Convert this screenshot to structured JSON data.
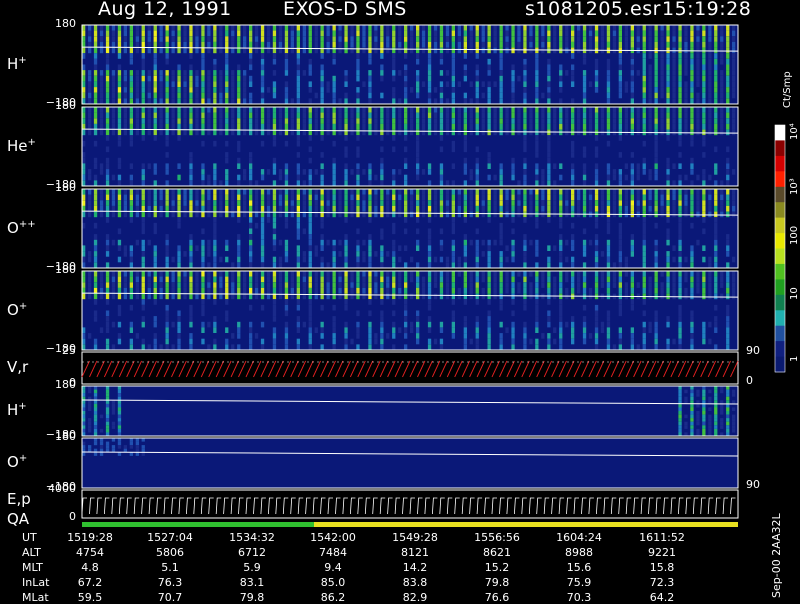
{
  "header": {
    "date": "Aug 12, 1991",
    "instrument": "EXOS-D SMS",
    "file": "s1081205.esr",
    "time": "15:19:28"
  },
  "panels": [
    {
      "id": "h1",
      "label_base": "H",
      "label_sup": "+",
      "top_tick": "180",
      "bottom_tick": "−180"
    },
    {
      "id": "he",
      "label_base": "He",
      "label_sup": "+",
      "top_tick": "180",
      "bottom_tick": "−180"
    },
    {
      "id": "oo",
      "label_base": "O",
      "label_sup": "++",
      "top_tick": "180",
      "bottom_tick": "−180"
    },
    {
      "id": "o1",
      "label_base": "O",
      "label_sup": "+",
      "top_tick": "180",
      "bottom_tick": "−180"
    },
    {
      "id": "vr",
      "label_base": "V,r",
      "label_sup": "",
      "top_tick": "25",
      "bottom_tick": "0",
      "right_top": "90",
      "right_bottom": "0"
    },
    {
      "id": "h2",
      "label_base": "H",
      "label_sup": "+",
      "top_tick": "180",
      "bottom_tick": "−180"
    },
    {
      "id": "o2",
      "label_base": "O",
      "label_sup": "+",
      "top_tick": "180",
      "bottom_tick": "−180",
      "right_bottom": "90"
    },
    {
      "id": "ep",
      "label_base": "E,p",
      "label_sup": "",
      "label2": "QA",
      "top_tick": "4000",
      "bottom_tick": "0"
    }
  ],
  "colorbar": {
    "unit": "Ct/Smp",
    "ticks": [
      "10⁴",
      "10³",
      "100",
      "10",
      "1"
    ],
    "colors": [
      "#ffffff",
      "#8b0000",
      "#d40000",
      "#ff2000",
      "#5a4a2a",
      "#8a8a20",
      "#c8c820",
      "#e8e800",
      "#b8e020",
      "#50c020",
      "#20a020",
      "#108050",
      "#20b0b0",
      "#2050a0",
      "#102080",
      "#0a1a70"
    ]
  },
  "ephemeris": {
    "rows": [
      {
        "label": "UT",
        "values": [
          "1519:28",
          "1527:04",
          "1534:32",
          "1542:00",
          "1549:28",
          "1556:56",
          "1604:24",
          "1611:52"
        ]
      },
      {
        "label": "ALT",
        "values": [
          "4754",
          "5806",
          "6712",
          "7484",
          "8121",
          "8621",
          "8988",
          "9221"
        ]
      },
      {
        "label": "MLT",
        "values": [
          "4.8",
          "5.1",
          "5.9",
          "9.4",
          "14.2",
          "15.2",
          "15.6",
          "15.8"
        ]
      },
      {
        "label": "InLat",
        "values": [
          "67.2",
          "76.3",
          "83.1",
          "85.0",
          "83.8",
          "79.8",
          "75.9",
          "72.3"
        ]
      },
      {
        "label": "MLat",
        "values": [
          "59.5",
          "70.7",
          "79.8",
          "86.2",
          "82.9",
          "76.6",
          "70.3",
          "64.2"
        ]
      }
    ]
  },
  "footer_stamp": "Sep-00 2AA32L",
  "chart_data": {
    "type": "heatmap",
    "x_time_labels": [
      "1519:28",
      "1527:04",
      "1534:32",
      "1542:00",
      "1549:28",
      "1556:56",
      "1604:24",
      "1611:52"
    ],
    "y_range_pitch_angle": [
      -180,
      180
    ],
    "vr_range": [
      0,
      25
    ],
    "ep_range": [
      0,
      4000
    ],
    "colorscale_counts_log": [
      1,
      10,
      100,
      1000,
      10000
    ]
  }
}
